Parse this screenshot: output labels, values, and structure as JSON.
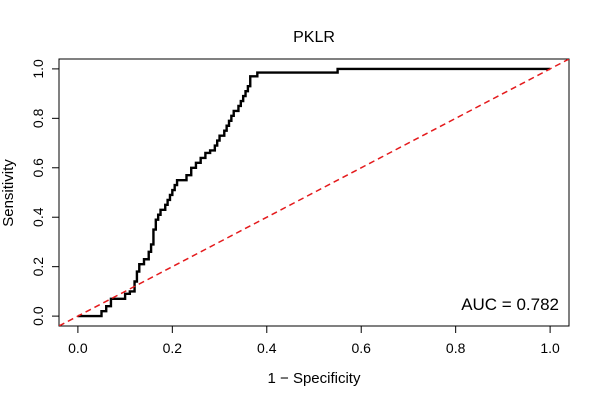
{
  "chart_data": {
    "type": "line",
    "title": "PKLR",
    "xlabel": "1 − Specificity",
    "ylabel": "Sensitivity",
    "xlim": [
      -0.04,
      1.04
    ],
    "ylim": [
      -0.04,
      1.04
    ],
    "x_ticks": [
      {
        "value": 0.0,
        "label": "0.0"
      },
      {
        "value": 0.2,
        "label": "0.2"
      },
      {
        "value": 0.4,
        "label": "0.4"
      },
      {
        "value": 0.6,
        "label": "0.6"
      },
      {
        "value": 0.8,
        "label": "0.8"
      },
      {
        "value": 1.0,
        "label": "1.0"
      }
    ],
    "y_ticks": [
      {
        "value": 0.0,
        "label": "0.0"
      },
      {
        "value": 0.2,
        "label": "0.2"
      },
      {
        "value": 0.4,
        "label": "0.4"
      },
      {
        "value": 0.6,
        "label": "0.6"
      },
      {
        "value": 0.8,
        "label": "0.8"
      },
      {
        "value": 1.0,
        "label": "1.0"
      }
    ],
    "grid": false,
    "series": [
      {
        "color": "#000000",
        "style": "solid",
        "points": [
          [
            0.0,
            0.0
          ],
          [
            0.05,
            0.0
          ],
          [
            0.05,
            0.02
          ],
          [
            0.06,
            0.02
          ],
          [
            0.06,
            0.04
          ],
          [
            0.07,
            0.04
          ],
          [
            0.07,
            0.07
          ],
          [
            0.1,
            0.07
          ],
          [
            0.1,
            0.09
          ],
          [
            0.11,
            0.09
          ],
          [
            0.11,
            0.1
          ],
          [
            0.12,
            0.1
          ],
          [
            0.12,
            0.14
          ],
          [
            0.125,
            0.14
          ],
          [
            0.125,
            0.18
          ],
          [
            0.13,
            0.18
          ],
          [
            0.13,
            0.21
          ],
          [
            0.14,
            0.21
          ],
          [
            0.14,
            0.23
          ],
          [
            0.15,
            0.23
          ],
          [
            0.15,
            0.26
          ],
          [
            0.155,
            0.26
          ],
          [
            0.155,
            0.29
          ],
          [
            0.16,
            0.29
          ],
          [
            0.16,
            0.35
          ],
          [
            0.165,
            0.35
          ],
          [
            0.165,
            0.39
          ],
          [
            0.17,
            0.39
          ],
          [
            0.17,
            0.41
          ],
          [
            0.175,
            0.41
          ],
          [
            0.175,
            0.43
          ],
          [
            0.185,
            0.43
          ],
          [
            0.185,
            0.45
          ],
          [
            0.19,
            0.45
          ],
          [
            0.19,
            0.47
          ],
          [
            0.195,
            0.47
          ],
          [
            0.195,
            0.49
          ],
          [
            0.2,
            0.49
          ],
          [
            0.2,
            0.51
          ],
          [
            0.205,
            0.51
          ],
          [
            0.205,
            0.53
          ],
          [
            0.21,
            0.53
          ],
          [
            0.21,
            0.55
          ],
          [
            0.23,
            0.55
          ],
          [
            0.23,
            0.57
          ],
          [
            0.24,
            0.57
          ],
          [
            0.24,
            0.6
          ],
          [
            0.25,
            0.6
          ],
          [
            0.25,
            0.62
          ],
          [
            0.26,
            0.62
          ],
          [
            0.26,
            0.64
          ],
          [
            0.27,
            0.64
          ],
          [
            0.27,
            0.66
          ],
          [
            0.28,
            0.66
          ],
          [
            0.28,
            0.67
          ],
          [
            0.29,
            0.67
          ],
          [
            0.29,
            0.69
          ],
          [
            0.295,
            0.69
          ],
          [
            0.295,
            0.71
          ],
          [
            0.3,
            0.71
          ],
          [
            0.3,
            0.73
          ],
          [
            0.31,
            0.73
          ],
          [
            0.31,
            0.75
          ],
          [
            0.315,
            0.75
          ],
          [
            0.315,
            0.77
          ],
          [
            0.32,
            0.77
          ],
          [
            0.32,
            0.79
          ],
          [
            0.325,
            0.79
          ],
          [
            0.325,
            0.81
          ],
          [
            0.33,
            0.81
          ],
          [
            0.33,
            0.83
          ],
          [
            0.34,
            0.83
          ],
          [
            0.34,
            0.85
          ],
          [
            0.345,
            0.85
          ],
          [
            0.345,
            0.87
          ],
          [
            0.35,
            0.87
          ],
          [
            0.35,
            0.89
          ],
          [
            0.355,
            0.89
          ],
          [
            0.355,
            0.91
          ],
          [
            0.36,
            0.91
          ],
          [
            0.36,
            0.93
          ],
          [
            0.365,
            0.93
          ],
          [
            0.365,
            0.97
          ],
          [
            0.38,
            0.97
          ],
          [
            0.38,
            0.985
          ],
          [
            0.55,
            0.985
          ],
          [
            0.55,
            1.0
          ],
          [
            1.0,
            1.0
          ]
        ]
      },
      {
        "color": "#e41a1c",
        "style": "dashed",
        "points": [
          [
            -0.04,
            -0.04
          ],
          [
            1.04,
            1.04
          ]
        ]
      }
    ],
    "annotations": [
      {
        "text": "AUC = 0.782",
        "position": "bottom-right"
      }
    ]
  }
}
